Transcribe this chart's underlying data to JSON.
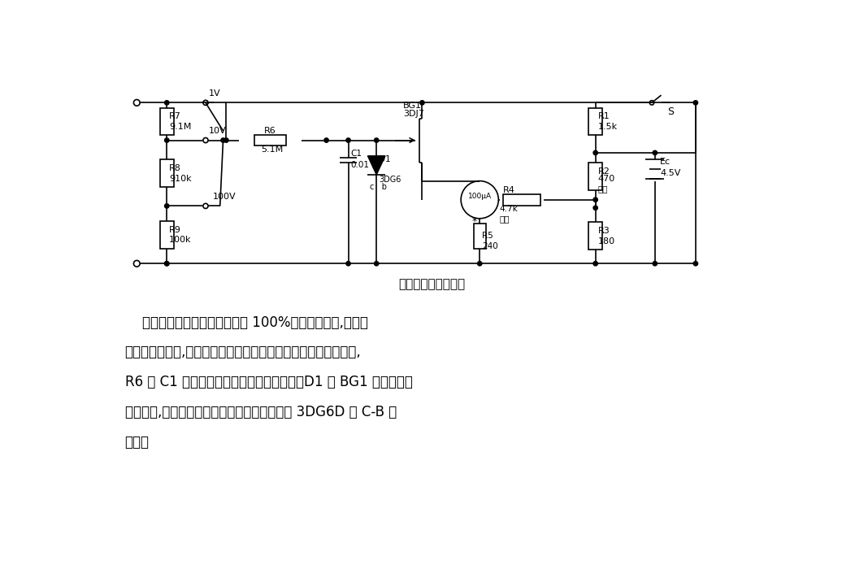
{
  "bg_color": "#ffffff",
  "title": "简易场效应管电压表",
  "desc_line1": "    由于场效应管源极跟随器加有 100%的电压负反馈,电压表",
  "desc_line2": "的指示稳定性好,基本上不随温度变化或调换管子等因素的影响。,",
  "desc_line3": "R6 和 C1 组成的滤波器用来滤除交流干扰。D1 是 BG1 输入端的保",
  "desc_line4": "护二极管,它要求漏电流极小。它也可用晶体管 3DG6D 的 C-B 结",
  "desc_line5": "代替。"
}
